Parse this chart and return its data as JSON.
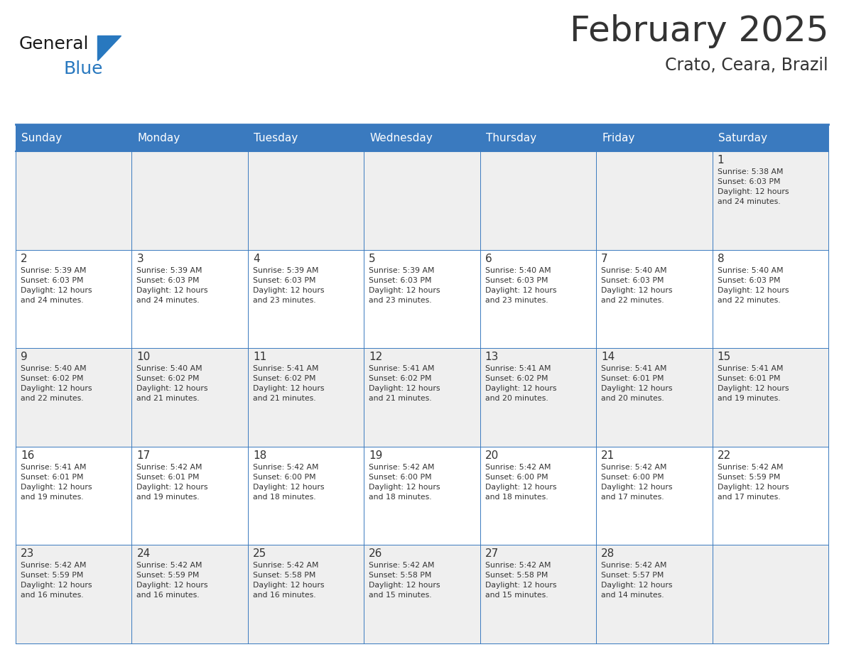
{
  "title": "February 2025",
  "subtitle": "Crato, Ceara, Brazil",
  "header_color": "#3a7abf",
  "header_text_color": "#ffffff",
  "day_names": [
    "Sunday",
    "Monday",
    "Tuesday",
    "Wednesday",
    "Thursday",
    "Friday",
    "Saturday"
  ],
  "background_color": "#ffffff",
  "cell_bg_even": "#efefef",
  "cell_bg_odd": "#ffffff",
  "border_color": "#3a7abf",
  "text_color": "#333333",
  "logo_general_color": "#1a1a1a",
  "logo_blue_color": "#2878bf",
  "calendar_data": [
    [
      null,
      null,
      null,
      null,
      null,
      null,
      {
        "day": 1,
        "sunrise": "5:38 AM",
        "sunset": "6:03 PM",
        "daylight": "12 hours and 24 minutes."
      }
    ],
    [
      {
        "day": 2,
        "sunrise": "5:39 AM",
        "sunset": "6:03 PM",
        "daylight": "12 hours and 24 minutes."
      },
      {
        "day": 3,
        "sunrise": "5:39 AM",
        "sunset": "6:03 PM",
        "daylight": "12 hours and 24 minutes."
      },
      {
        "day": 4,
        "sunrise": "5:39 AM",
        "sunset": "6:03 PM",
        "daylight": "12 hours and 23 minutes."
      },
      {
        "day": 5,
        "sunrise": "5:39 AM",
        "sunset": "6:03 PM",
        "daylight": "12 hours and 23 minutes."
      },
      {
        "day": 6,
        "sunrise": "5:40 AM",
        "sunset": "6:03 PM",
        "daylight": "12 hours and 23 minutes."
      },
      {
        "day": 7,
        "sunrise": "5:40 AM",
        "sunset": "6:03 PM",
        "daylight": "12 hours and 22 minutes."
      },
      {
        "day": 8,
        "sunrise": "5:40 AM",
        "sunset": "6:03 PM",
        "daylight": "12 hours and 22 minutes."
      }
    ],
    [
      {
        "day": 9,
        "sunrise": "5:40 AM",
        "sunset": "6:02 PM",
        "daylight": "12 hours and 22 minutes."
      },
      {
        "day": 10,
        "sunrise": "5:40 AM",
        "sunset": "6:02 PM",
        "daylight": "12 hours and 21 minutes."
      },
      {
        "day": 11,
        "sunrise": "5:41 AM",
        "sunset": "6:02 PM",
        "daylight": "12 hours and 21 minutes."
      },
      {
        "day": 12,
        "sunrise": "5:41 AM",
        "sunset": "6:02 PM",
        "daylight": "12 hours and 21 minutes."
      },
      {
        "day": 13,
        "sunrise": "5:41 AM",
        "sunset": "6:02 PM",
        "daylight": "12 hours and 20 minutes."
      },
      {
        "day": 14,
        "sunrise": "5:41 AM",
        "sunset": "6:01 PM",
        "daylight": "12 hours and 20 minutes."
      },
      {
        "day": 15,
        "sunrise": "5:41 AM",
        "sunset": "6:01 PM",
        "daylight": "12 hours and 19 minutes."
      }
    ],
    [
      {
        "day": 16,
        "sunrise": "5:41 AM",
        "sunset": "6:01 PM",
        "daylight": "12 hours and 19 minutes."
      },
      {
        "day": 17,
        "sunrise": "5:42 AM",
        "sunset": "6:01 PM",
        "daylight": "12 hours and 19 minutes."
      },
      {
        "day": 18,
        "sunrise": "5:42 AM",
        "sunset": "6:00 PM",
        "daylight": "12 hours and 18 minutes."
      },
      {
        "day": 19,
        "sunrise": "5:42 AM",
        "sunset": "6:00 PM",
        "daylight": "12 hours and 18 minutes."
      },
      {
        "day": 20,
        "sunrise": "5:42 AM",
        "sunset": "6:00 PM",
        "daylight": "12 hours and 18 minutes."
      },
      {
        "day": 21,
        "sunrise": "5:42 AM",
        "sunset": "6:00 PM",
        "daylight": "12 hours and 17 minutes."
      },
      {
        "day": 22,
        "sunrise": "5:42 AM",
        "sunset": "5:59 PM",
        "daylight": "12 hours and 17 minutes."
      }
    ],
    [
      {
        "day": 23,
        "sunrise": "5:42 AM",
        "sunset": "5:59 PM",
        "daylight": "12 hours and 16 minutes."
      },
      {
        "day": 24,
        "sunrise": "5:42 AM",
        "sunset": "5:59 PM",
        "daylight": "12 hours and 16 minutes."
      },
      {
        "day": 25,
        "sunrise": "5:42 AM",
        "sunset": "5:58 PM",
        "daylight": "12 hours and 16 minutes."
      },
      {
        "day": 26,
        "sunrise": "5:42 AM",
        "sunset": "5:58 PM",
        "daylight": "12 hours and 15 minutes."
      },
      {
        "day": 27,
        "sunrise": "5:42 AM",
        "sunset": "5:58 PM",
        "daylight": "12 hours and 15 minutes."
      },
      {
        "day": 28,
        "sunrise": "5:42 AM",
        "sunset": "5:57 PM",
        "daylight": "12 hours and 14 minutes."
      },
      null
    ]
  ],
  "num_rows": 5,
  "num_cols": 7,
  "fig_width": 11.88,
  "fig_height": 9.18,
  "dpi": 100
}
